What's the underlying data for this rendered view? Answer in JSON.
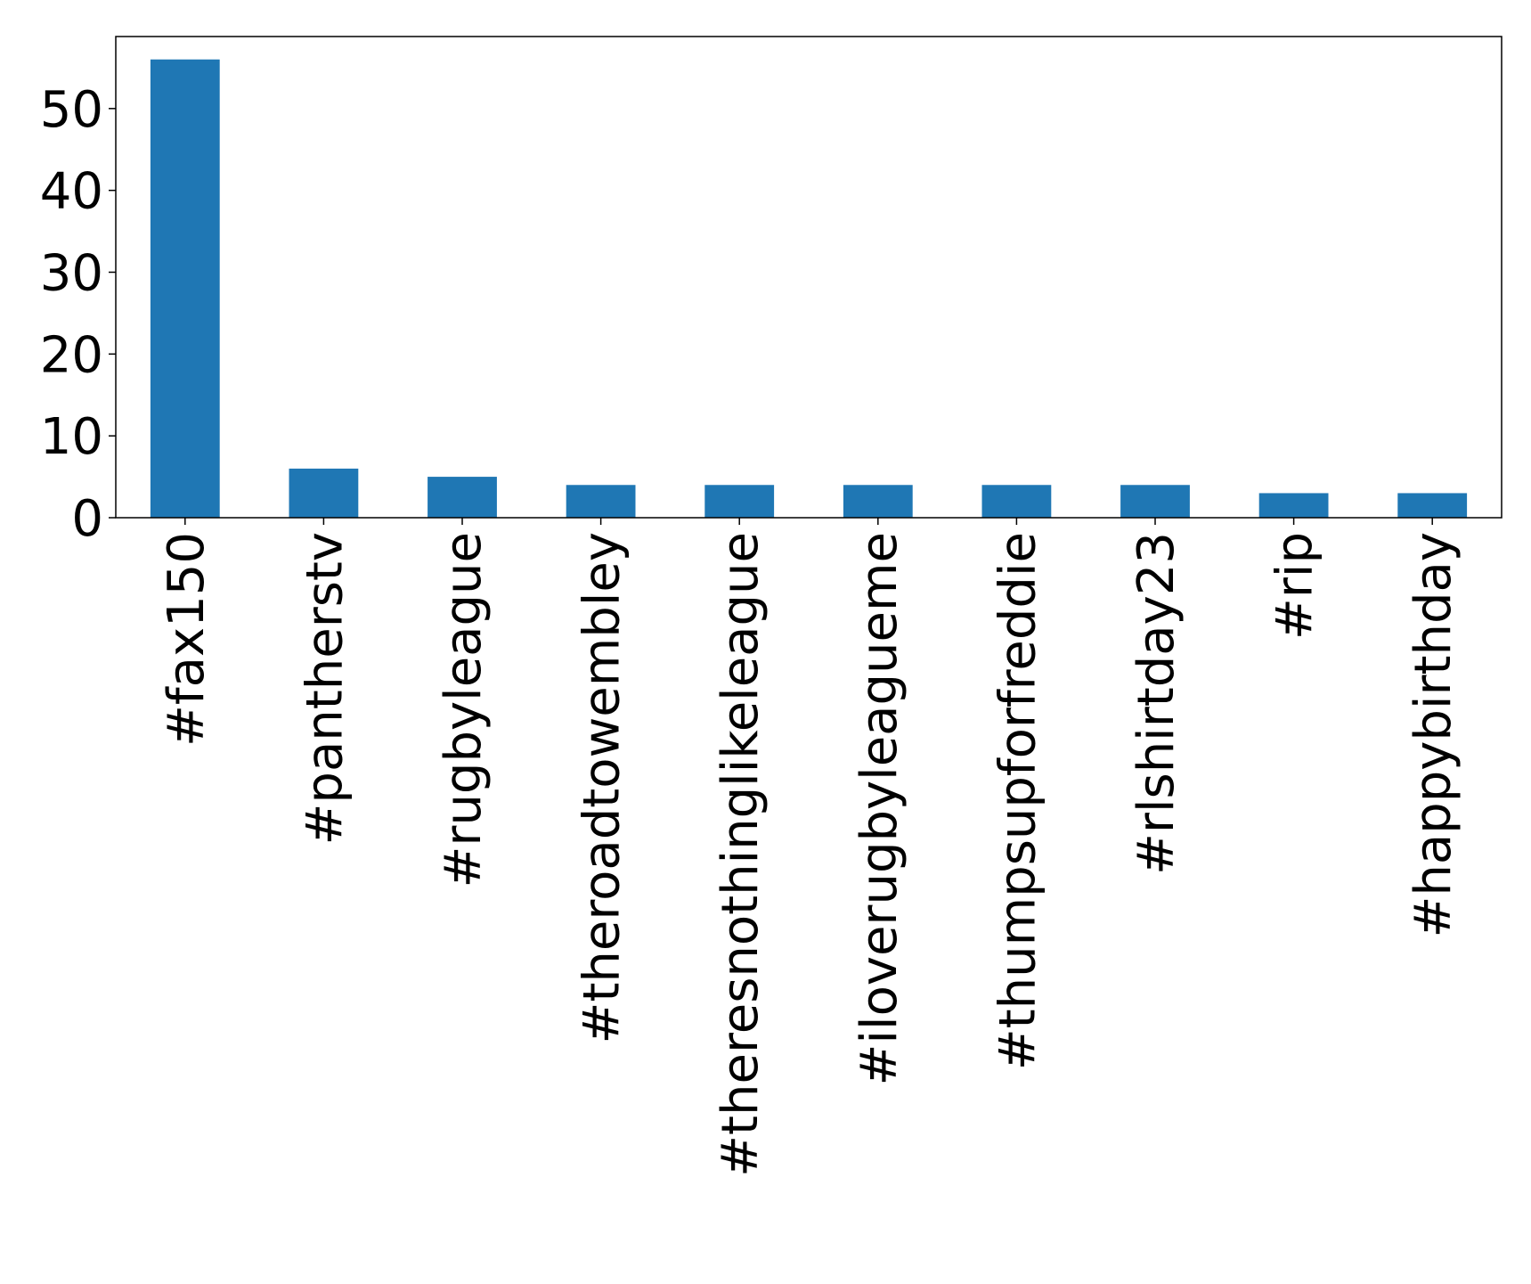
{
  "chart_data": {
    "type": "bar",
    "title": "",
    "xlabel": "",
    "ylabel": "",
    "categories": [
      "#fax150",
      "#pantherstv",
      "#rugbyleague",
      "#theroadtowembley",
      "#theresnothinglikeleague",
      "#iloverugbyleagueme",
      "#thumpsupforfreddie",
      "#rlshirtday23",
      "#rip",
      "#happybirthday"
    ],
    "values": [
      56,
      6,
      5,
      4,
      4,
      4,
      4,
      4,
      3,
      3
    ],
    "ylim": [
      0,
      58.8
    ],
    "yticks": [
      0,
      10,
      20,
      30,
      40,
      50
    ],
    "bar_color": "#1f77b4",
    "grid": false,
    "legend": "none"
  }
}
